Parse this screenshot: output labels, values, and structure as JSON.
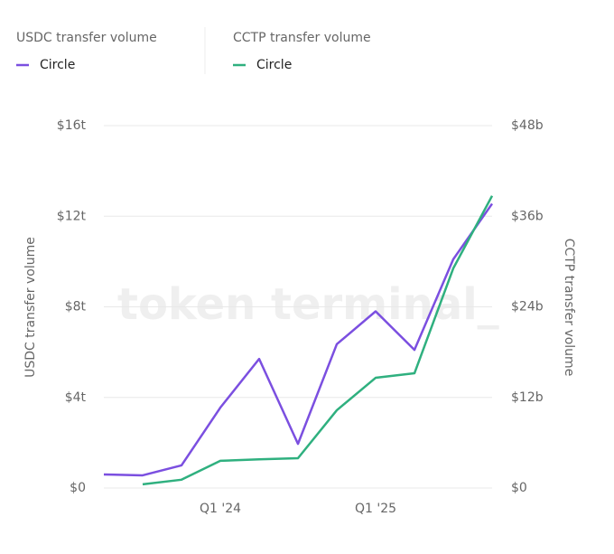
{
  "chart_data": {
    "type": "line",
    "legend": [
      {
        "title": "USDC transfer volume",
        "series": 0
      },
      {
        "title": "CCTP transfer volume",
        "series": 1
      }
    ],
    "watermark": "token terminal_",
    "ylabel": "USDC transfer volume",
    "y2label": "CCTP transfer volume",
    "categories": [
      null,
      null,
      null,
      "Q1 '24",
      null,
      null,
      null,
      "Q1 '25",
      null,
      null,
      null
    ],
    "series": [
      {
        "name": "Circle",
        "color": "#7b4fe0",
        "values": [
          0.6,
          0.56,
          1.0,
          3.55,
          5.7,
          1.95,
          6.35,
          7.8,
          6.1,
          10.1,
          12.55
        ]
      },
      {
        "name": "Circle",
        "color": "#2fb07f",
        "axis": "y2",
        "values": [
          null,
          0.5,
          1.1,
          3.6,
          3.8,
          3.95,
          10.3,
          14.6,
          15.2,
          29.1,
          38.7
        ]
      }
    ],
    "ylim": [
      0,
      16
    ],
    "yticks": [
      {
        "value": 0,
        "label": "$0"
      },
      {
        "value": 4,
        "label": "$4t"
      },
      {
        "value": 8,
        "label": "$8t"
      },
      {
        "value": 12,
        "label": "$12t"
      },
      {
        "value": 16,
        "label": "$16t"
      }
    ],
    "y2lim": [
      0,
      48
    ],
    "y2ticks": [
      {
        "value": 0,
        "label": "$0"
      },
      {
        "value": 12,
        "label": "$12b"
      },
      {
        "value": 24,
        "label": "$24b"
      },
      {
        "value": 36,
        "label": "$36b"
      },
      {
        "value": 48,
        "label": "$48b"
      }
    ],
    "grid": true
  }
}
